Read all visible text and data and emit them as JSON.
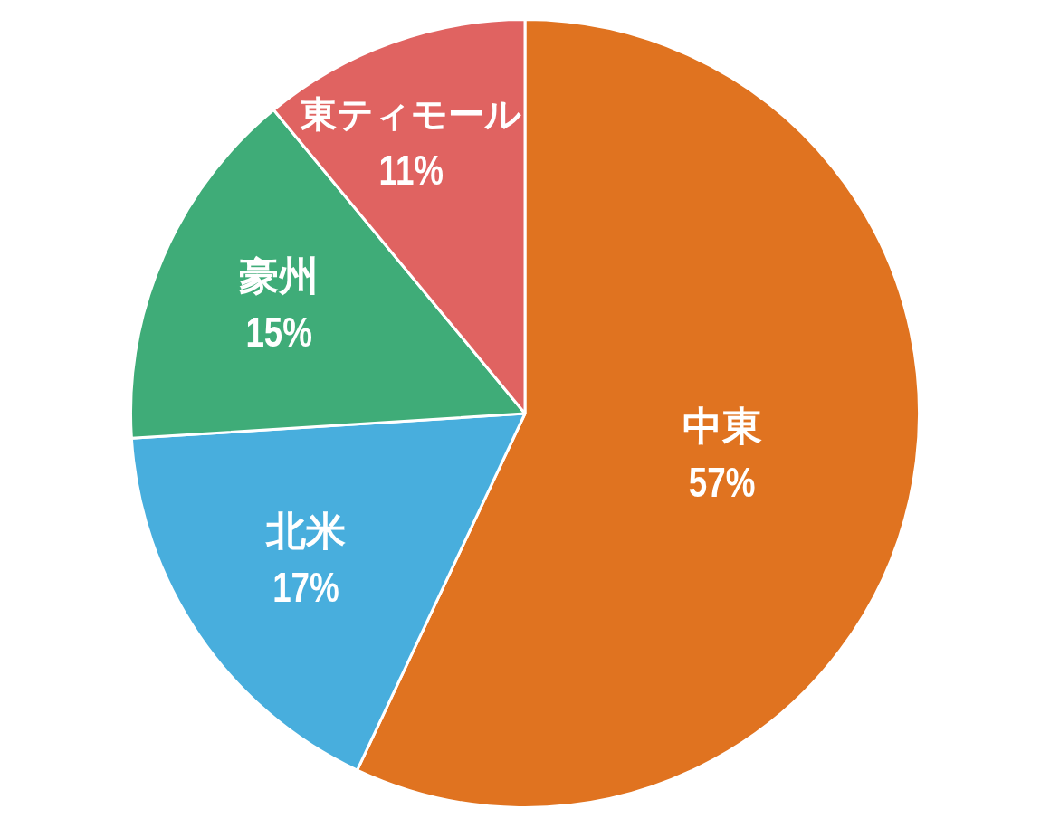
{
  "chart_data": {
    "type": "pie",
    "categories": [
      "中東",
      "北米",
      "豪州",
      "東ティモール"
    ],
    "values": [
      57,
      17,
      15,
      11
    ],
    "colors": [
      "#e07320",
      "#48aedd",
      "#3fac78",
      "#e06361"
    ],
    "value_labels": [
      "57%",
      "17%",
      "15%",
      "11%"
    ],
    "legend": false
  }
}
